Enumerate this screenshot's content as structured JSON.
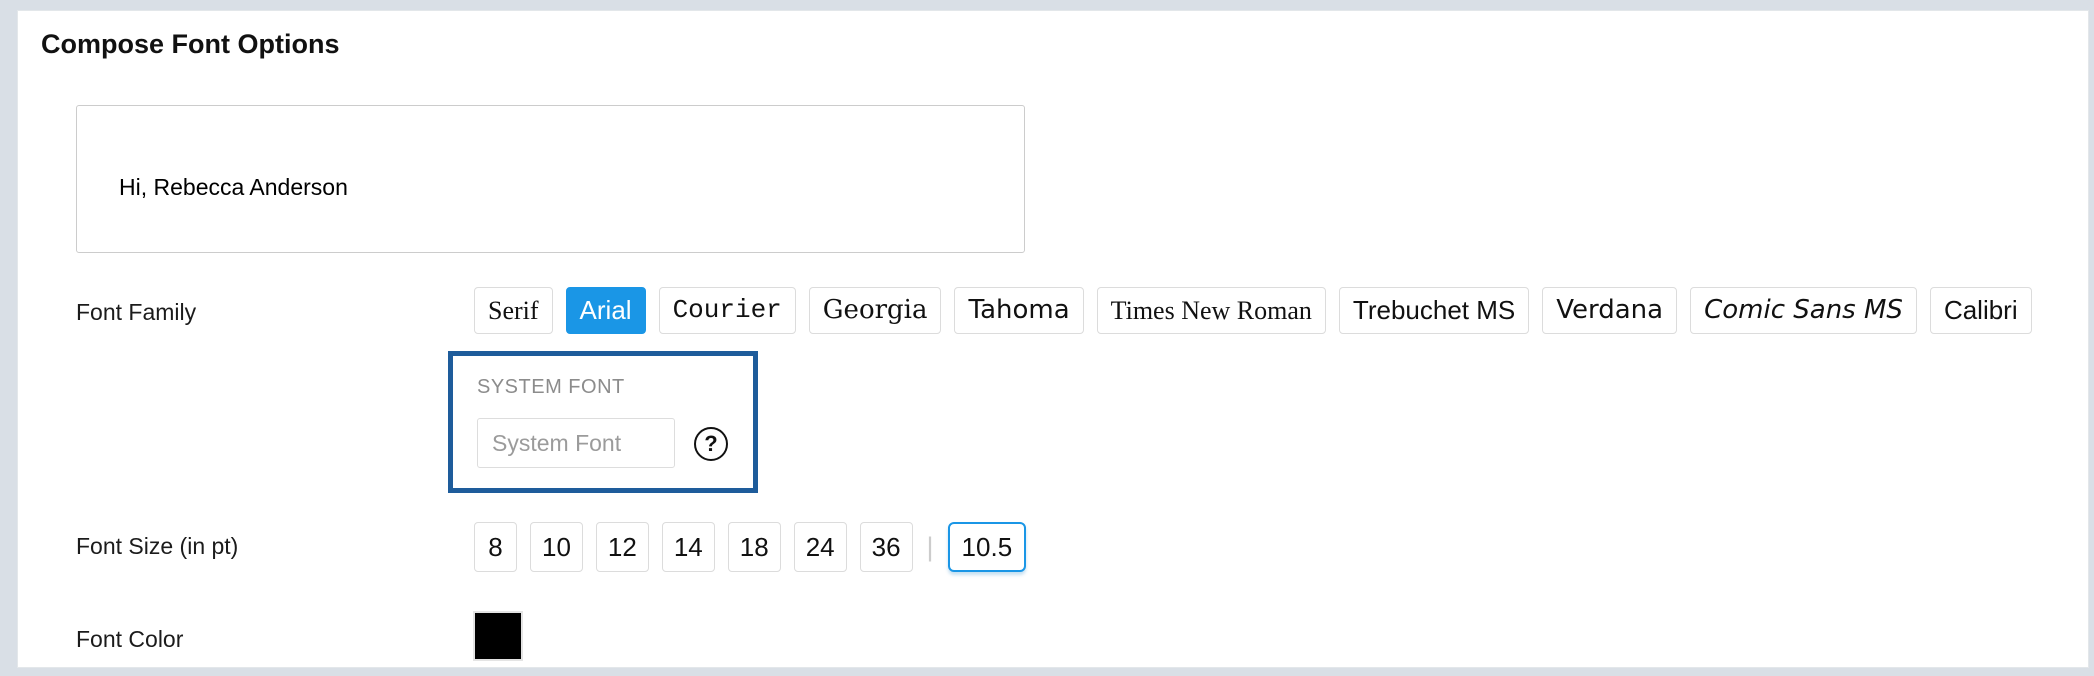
{
  "header": {
    "title": "Compose Font Options"
  },
  "preview": {
    "text": "Hi, Rebecca Anderson"
  },
  "font_family": {
    "label": "Font Family",
    "options": [
      {
        "label": "Serif",
        "style": "serif",
        "selected": false
      },
      {
        "label": "Arial",
        "style": "arial",
        "selected": true
      },
      {
        "label": "Courier",
        "style": "courier",
        "selected": false
      },
      {
        "label": "Georgia",
        "style": "georgia",
        "selected": false
      },
      {
        "label": "Tahoma",
        "style": "tahoma",
        "selected": false
      },
      {
        "label": "Times New Roman",
        "style": "times",
        "selected": false
      },
      {
        "label": "Trebuchet MS",
        "style": "trebuchet",
        "selected": false
      },
      {
        "label": "Verdana",
        "style": "verdana",
        "selected": false
      },
      {
        "label": "Comic Sans MS",
        "style": "comic",
        "selected": false
      },
      {
        "label": "Calibri",
        "style": "calibri",
        "selected": false
      }
    ]
  },
  "system_font": {
    "group_label": "SYSTEM FONT",
    "placeholder": "System Font",
    "value": "",
    "help_icon_glyph": "?"
  },
  "font_size": {
    "label": "Font Size (in pt)",
    "options": [
      "8",
      "10",
      "12",
      "14",
      "18",
      "24",
      "36"
    ],
    "separator": "|",
    "custom_size": "10.5",
    "selected": "10.5"
  },
  "font_color": {
    "label": "Font Color",
    "value": "#000000"
  },
  "colors": {
    "accent_blue": "#1a96e6",
    "highlight_border": "#1e5c9b",
    "page_background": "#d9dfe6"
  }
}
